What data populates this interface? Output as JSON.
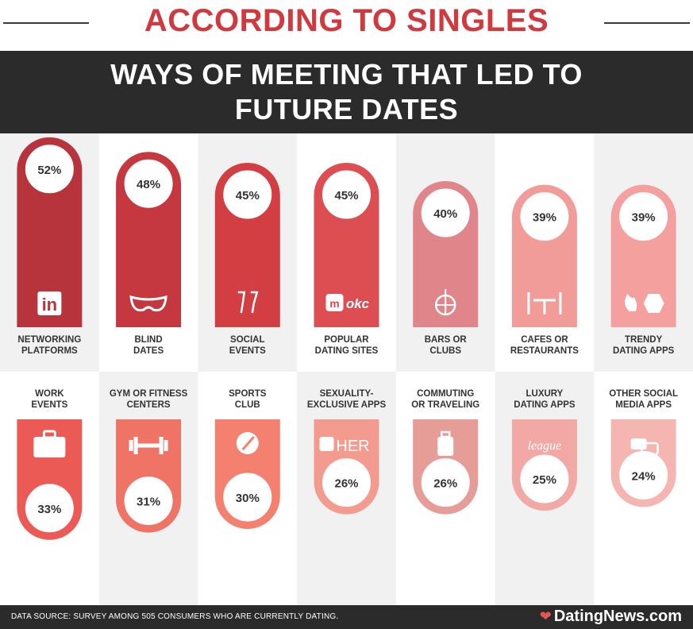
{
  "header": {
    "top_title": "ACCORDING TO SINGLES",
    "banner_line1": "WAYS OF MEETING THAT LED TO",
    "banner_line2": "FUTURE DATES"
  },
  "footer": {
    "source": "DATA SOURCE: SURVEY AMONG 505 CONSUMERS WHO ARE CURRENTLY DATING.",
    "brand": "DatingNews.com"
  },
  "chart_data": {
    "type": "bar",
    "unit": "%",
    "ylim": [
      0,
      100
    ],
    "grid": false,
    "legend": "none",
    "rows": [
      {
        "orientation": "top",
        "items": [
          {
            "label_lines": [
              "NETWORKING",
              "PLATFORMS"
            ],
            "value": 52,
            "value_label": "52%",
            "color": "#b8343c",
            "icon": "linkedin-icon",
            "icon_text": "in"
          },
          {
            "label_lines": [
              "BLIND",
              "DATES"
            ],
            "value": 48,
            "value_label": "48%",
            "color": "#c6383f",
            "icon": "mask-icon",
            "icon_text": ""
          },
          {
            "label_lines": [
              "SOCIAL",
              "EVENTS"
            ],
            "value": 45,
            "value_label": "45%",
            "color": "#d23e42",
            "icon": "champagne-icon",
            "icon_text": ""
          },
          {
            "label_lines": [
              "POPULAR",
              "DATING SITES"
            ],
            "value": 45,
            "value_label": "45%",
            "color": "#dc4e52",
            "icon": "match-okc-icon",
            "icon_text": "okc"
          },
          {
            "label_lines": [
              "BARS OR",
              "CLUBS"
            ],
            "value": 40,
            "value_label": "40%",
            "color": "#e0868a",
            "icon": "disco-ball-icon",
            "icon_text": ""
          },
          {
            "label_lines": [
              "CAFES OR",
              "RESTAURANTS"
            ],
            "value": 39,
            "value_label": "39%",
            "color": "#f29c9a",
            "icon": "restaurant-table-icon",
            "icon_text": ""
          },
          {
            "label_lines": [
              "TRENDY",
              "DATING APPS"
            ],
            "value": 39,
            "value_label": "39%",
            "color": "#f3a09e",
            "icon": "tinder-bumble-icon",
            "icon_text": ""
          }
        ]
      },
      {
        "orientation": "bottom",
        "items": [
          {
            "label_lines": [
              "WORK",
              "EVENTS"
            ],
            "value": 33,
            "value_label": "33%",
            "color": "#ec5a55",
            "icon": "briefcase-icon",
            "icon_text": ""
          },
          {
            "label_lines": [
              "GYM OR FITNESS",
              "CENTERS"
            ],
            "value": 31,
            "value_label": "31%",
            "color": "#f07465",
            "icon": "dumbbell-icon",
            "icon_text": ""
          },
          {
            "label_lines": [
              "SPORTS",
              "CLUB"
            ],
            "value": 30,
            "value_label": "30%",
            "color": "#f4806f",
            "icon": "racket-icon",
            "icon_text": ""
          },
          {
            "label_lines": [
              "SEXUALITY-",
              "EXCLUSIVE APPS"
            ],
            "value": 26,
            "value_label": "26%",
            "color": "#f29b8e",
            "icon": "her-app-icon",
            "icon_text": "HER"
          },
          {
            "label_lines": [
              "COMMUTING",
              "OR TRAVELING"
            ],
            "value": 26,
            "value_label": "26%",
            "color": "#e69c97",
            "icon": "luggage-icon",
            "icon_text": ""
          },
          {
            "label_lines": [
              "LUXURY",
              "DATING APPS"
            ],
            "value": 25,
            "value_label": "25%",
            "color": "#f2a9a5",
            "icon": "the-league-icon",
            "icon_text": "league"
          },
          {
            "label_lines": [
              "OTHER SOCIAL",
              "MEDIA APPS"
            ],
            "value": 24,
            "value_label": "24%",
            "color": "#f5b6b2",
            "icon": "chat-bubbles-icon",
            "icon_text": ""
          }
        ]
      }
    ]
  }
}
